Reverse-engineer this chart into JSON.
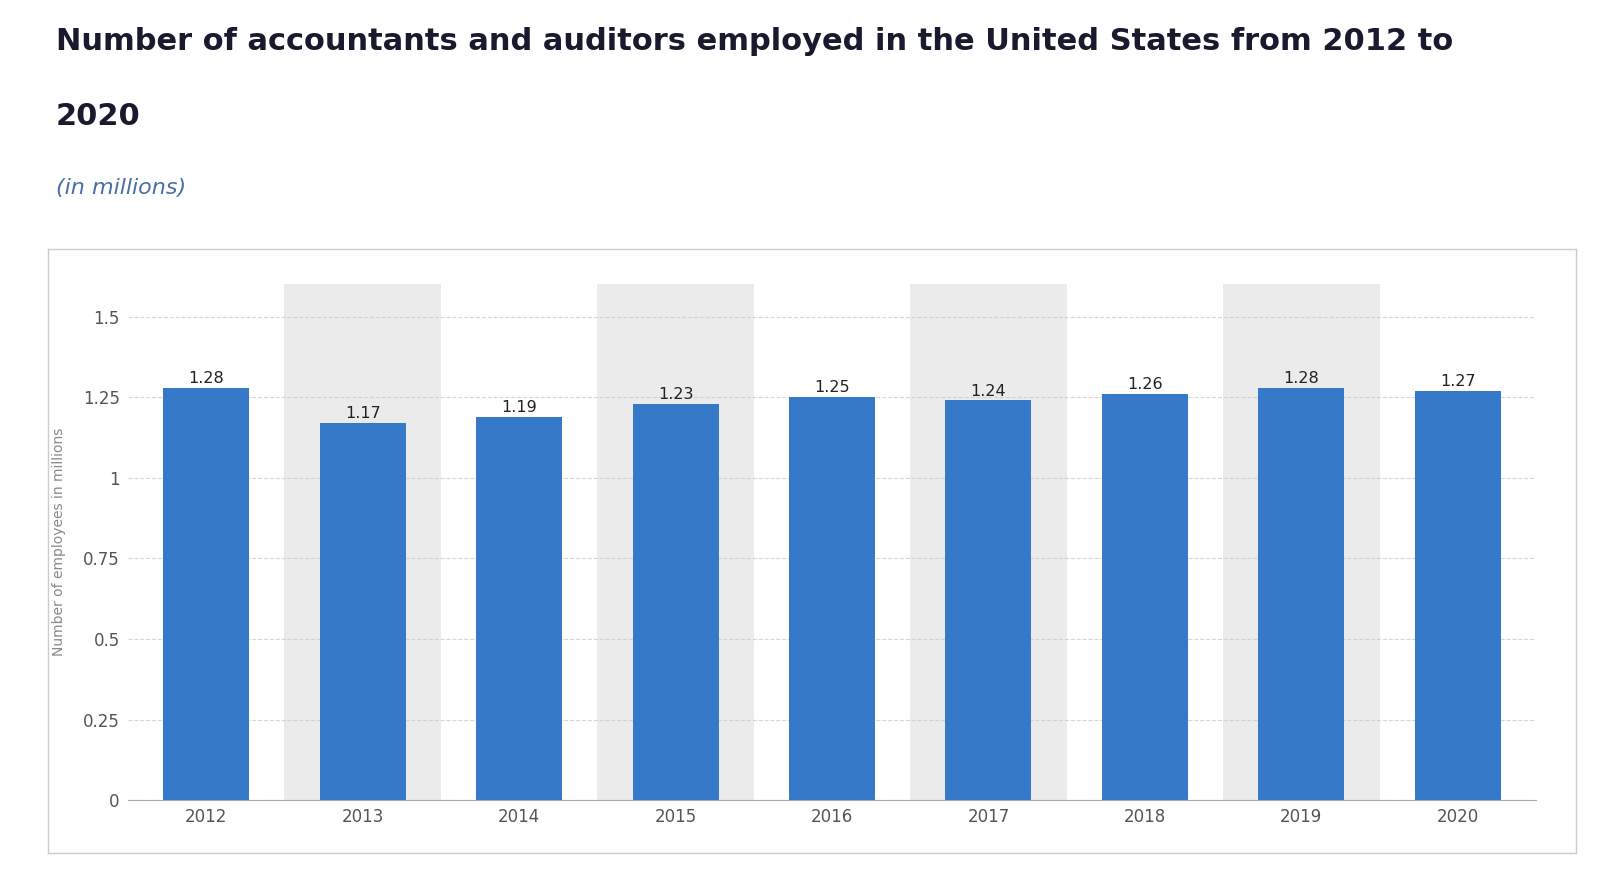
{
  "title_line1": "Number of accountants and auditors employed in the United States from 2012 to",
  "title_line2": "2020",
  "subtitle": "(in millions)",
  "years": [
    2012,
    2013,
    2014,
    2015,
    2016,
    2017,
    2018,
    2019,
    2020
  ],
  "values": [
    1.28,
    1.17,
    1.19,
    1.23,
    1.25,
    1.24,
    1.26,
    1.28,
    1.27
  ],
  "bar_color": "#3579c8",
  "ylabel": "Number of employees in millions",
  "ylim": [
    0,
    1.6
  ],
  "yticks": [
    0,
    0.25,
    0.5,
    0.75,
    1,
    1.25,
    1.5
  ],
  "bg_color": "#ffffff",
  "plot_bg_color": "#ffffff",
  "grid_color": "#cccccc",
  "shade_color": "#ebebeb",
  "title_color": "#1a1a2e",
  "subtitle_color": "#4a6fa5",
  "label_fontsize": 11.5,
  "title_fontsize": 22,
  "subtitle_fontsize": 16,
  "axis_label_fontsize": 10,
  "tick_fontsize": 12,
  "border_color": "#cccccc"
}
